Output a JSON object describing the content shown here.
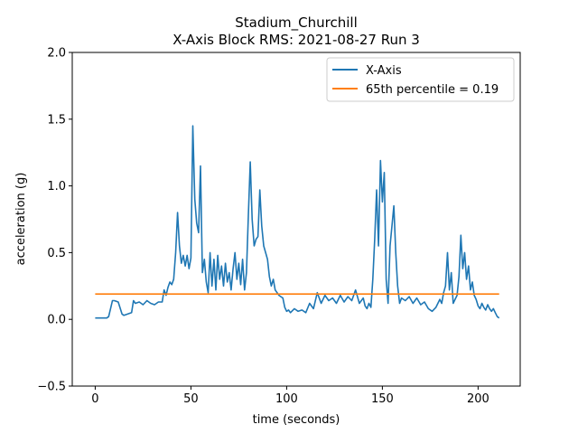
{
  "chart_data": {
    "type": "line",
    "title": "Stadium_Churchill",
    "subtitle": "X-Axis Block RMS: 2021-08-27 Run 3",
    "xlabel": "time (seconds)",
    "ylabel": "acceleration (g)",
    "xlim": [
      -12,
      222
    ],
    "ylim": [
      -0.5,
      2.0
    ],
    "x_ticks": [
      0,
      50,
      100,
      150,
      200
    ],
    "y_ticks": [
      -0.5,
      0.0,
      0.5,
      1.0,
      1.5,
      2.0
    ],
    "x_tick_labels": [
      "0",
      "50",
      "100",
      "150",
      "200"
    ],
    "y_tick_labels": [
      "−0.5",
      "0.0",
      "0.5",
      "1.0",
      "1.5",
      "2.0"
    ],
    "grid": false,
    "legend_position": "top-right",
    "series": [
      {
        "name": "X-Axis",
        "color": "#1f77b4",
        "x": [
          0,
          6,
          7,
          8,
          9,
          10,
          12,
          14,
          15,
          17,
          19,
          20,
          21,
          23,
          25,
          27,
          29,
          31,
          33,
          35,
          36,
          37,
          38,
          39,
          40,
          41,
          42,
          43,
          44,
          45,
          46,
          47,
          48,
          49,
          50,
          51,
          52,
          53,
          54,
          55,
          56,
          57,
          58,
          59,
          60,
          61,
          62,
          63,
          64,
          65,
          66,
          67,
          68,
          69,
          70,
          71,
          72,
          73,
          74,
          75,
          76,
          77,
          78,
          79,
          80,
          81,
          82,
          83,
          84,
          85,
          86,
          87,
          88,
          89,
          90,
          91,
          92,
          93,
          94,
          95,
          96,
          97,
          98,
          99,
          100,
          101,
          102,
          104,
          106,
          108,
          110,
          112,
          114,
          116,
          118,
          120,
          122,
          124,
          126,
          128,
          130,
          132,
          134,
          136,
          138,
          140,
          141,
          142,
          143,
          144,
          145,
          146,
          147,
          148,
          149,
          150,
          151,
          152,
          153,
          154,
          155,
          156,
          157,
          158,
          159,
          160,
          162,
          164,
          166,
          168,
          170,
          172,
          174,
          176,
          178,
          180,
          181,
          182,
          183,
          184,
          185,
          186,
          187,
          188,
          189,
          190,
          191,
          192,
          193,
          194,
          195,
          196,
          197,
          198,
          199,
          200,
          201,
          202,
          203,
          204,
          205,
          206,
          207,
          208,
          209,
          210,
          211
        ],
        "values": [
          0.01,
          0.01,
          0.02,
          0.08,
          0.14,
          0.14,
          0.13,
          0.04,
          0.03,
          0.04,
          0.05,
          0.14,
          0.12,
          0.13,
          0.11,
          0.14,
          0.12,
          0.11,
          0.13,
          0.13,
          0.22,
          0.18,
          0.24,
          0.28,
          0.26,
          0.3,
          0.5,
          0.8,
          0.55,
          0.42,
          0.48,
          0.4,
          0.48,
          0.38,
          0.46,
          1.45,
          0.9,
          0.72,
          0.65,
          1.15,
          0.35,
          0.45,
          0.28,
          0.2,
          0.5,
          0.25,
          0.45,
          0.22,
          0.48,
          0.3,
          0.4,
          0.25,
          0.42,
          0.28,
          0.35,
          0.22,
          0.38,
          0.5,
          0.3,
          0.42,
          0.26,
          0.45,
          0.22,
          0.35,
          0.78,
          1.18,
          0.75,
          0.55,
          0.6,
          0.62,
          0.97,
          0.7,
          0.55,
          0.5,
          0.45,
          0.32,
          0.25,
          0.3,
          0.22,
          0.2,
          0.18,
          0.17,
          0.16,
          0.09,
          0.06,
          0.07,
          0.05,
          0.08,
          0.06,
          0.07,
          0.05,
          0.12,
          0.08,
          0.2,
          0.12,
          0.18,
          0.14,
          0.16,
          0.12,
          0.18,
          0.13,
          0.17,
          0.14,
          0.22,
          0.12,
          0.16,
          0.1,
          0.08,
          0.12,
          0.09,
          0.3,
          0.6,
          0.97,
          0.55,
          1.19,
          0.88,
          1.1,
          0.3,
          0.12,
          0.55,
          0.7,
          0.85,
          0.5,
          0.25,
          0.12,
          0.16,
          0.14,
          0.17,
          0.12,
          0.16,
          0.11,
          0.13,
          0.08,
          0.06,
          0.09,
          0.15,
          0.12,
          0.2,
          0.25,
          0.5,
          0.22,
          0.35,
          0.12,
          0.15,
          0.18,
          0.32,
          0.63,
          0.38,
          0.5,
          0.3,
          0.4,
          0.22,
          0.28,
          0.18,
          0.15,
          0.1,
          0.08,
          0.12,
          0.09,
          0.07,
          0.11,
          0.08,
          0.06,
          0.08,
          0.05,
          0.02,
          0.01
        ]
      },
      {
        "name": "65th percentile = 0.19",
        "color": "#ff7f0e",
        "x": [
          0,
          211
        ],
        "values": [
          0.19,
          0.19
        ]
      }
    ]
  }
}
